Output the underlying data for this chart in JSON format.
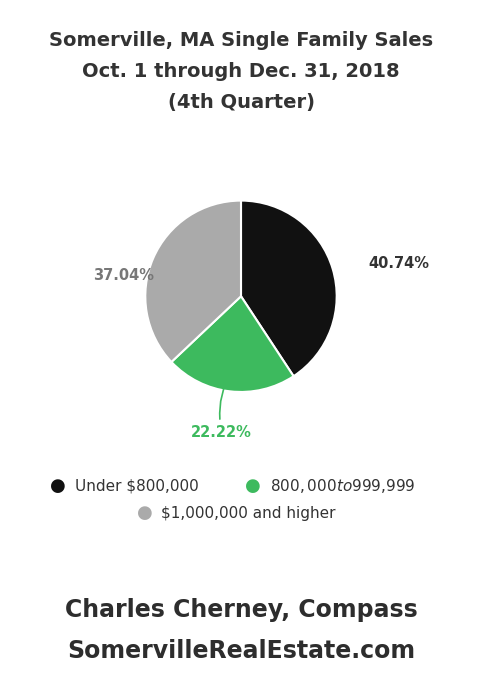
{
  "title_line1": "Somerville, MA Single Family Sales",
  "title_line2": "Oct. 1 through Dec. 31, 2018",
  "title_line3": "(4th Quarter)",
  "slices": [
    40.74,
    22.22,
    37.04
  ],
  "slice_labels": [
    "40.74%",
    "22.22%",
    "37.04%"
  ],
  "slice_colors": [
    "#111111",
    "#3dba5e",
    "#aaaaaa"
  ],
  "legend_labels": [
    "Under $800,000",
    "$800,000 to $999,999",
    "$1,000,000 and higher"
  ],
  "footer_line1": "Charles Cherney, Compass",
  "footer_line2": "SomervilleRealEstate.com",
  "title_color": "#333333",
  "footer_color": "#2d2d2d",
  "legend_color": "#333333",
  "label_colors": [
    "#333333",
    "#3dba5e",
    "#777777"
  ],
  "background_color": "#ffffff",
  "title_fontsize": 14,
  "footer_fontsize": 17,
  "legend_fontsize": 11
}
